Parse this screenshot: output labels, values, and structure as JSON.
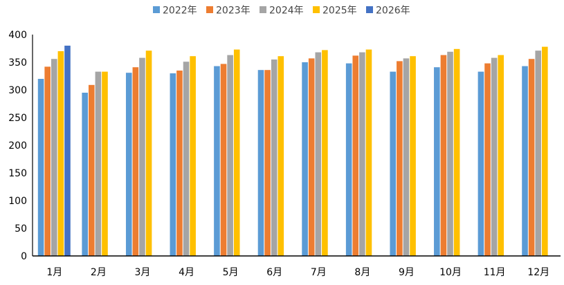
{
  "chart_data": {
    "type": "bar",
    "title": "",
    "xlabel": "",
    "ylabel": "",
    "categories": [
      "1月",
      "2月",
      "3月",
      "4月",
      "5月",
      "6月",
      "7月",
      "8月",
      "9月",
      "10月",
      "11月",
      "12月"
    ],
    "ylim": [
      0,
      400
    ],
    "yticks": [
      0,
      50,
      100,
      150,
      200,
      250,
      300,
      350,
      400
    ],
    "grid": false,
    "legend_position": "top",
    "series": [
      {
        "name": "2022年",
        "color": "#5b9bd5",
        "values": [
          320,
          295,
          331,
          330,
          343,
          336,
          350,
          348,
          333,
          341,
          333,
          343
        ]
      },
      {
        "name": "2023年",
        "color": "#ed7d31",
        "values": [
          342,
          309,
          341,
          335,
          347,
          336,
          357,
          362,
          352,
          363,
          348,
          356
        ]
      },
      {
        "name": "2024年",
        "color": "#a5a5a5",
        "values": [
          356,
          333,
          358,
          351,
          363,
          355,
          368,
          368,
          357,
          369,
          358,
          371
        ]
      },
      {
        "name": "2025年",
        "color": "#ffc000",
        "values": [
          370,
          333,
          371,
          361,
          373,
          361,
          372,
          373,
          361,
          374,
          363,
          378
        ]
      },
      {
        "name": "2026年",
        "color": "#4472c4",
        "values": [
          380,
          null,
          null,
          null,
          null,
          null,
          null,
          null,
          null,
          null,
          null,
          null
        ]
      }
    ]
  }
}
